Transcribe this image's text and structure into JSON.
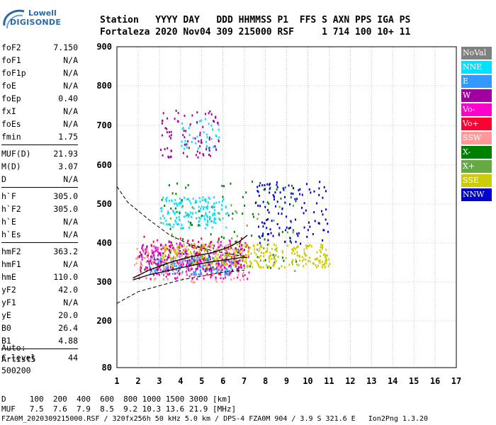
{
  "logo": {
    "line1": "Lowell",
    "line2": "DIGISONDE"
  },
  "header": {
    "line1": "Station   YYYY DAY   DDD HHMMSS P1  FFS S AXN PPS IGA PS",
    "line2": "Fortaleza 2020 Nov04 309 215000 RSF     1 714 100 10+ 11"
  },
  "params": {
    "group1": [
      {
        "label": "foF2",
        "value": "7.150"
      },
      {
        "label": "foF1",
        "value": "N/A"
      },
      {
        "label": "foF1p",
        "value": "N/A"
      },
      {
        "label": "foE",
        "value": "N/A"
      },
      {
        "label": "foEp",
        "value": "0.40"
      },
      {
        "label": "fxI",
        "value": "N/A"
      },
      {
        "label": "foEs",
        "value": "N/A"
      },
      {
        "label": "fmin",
        "value": "1.75"
      }
    ],
    "group2": [
      {
        "label": "MUF(D)",
        "value": "21.93"
      },
      {
        "label": "M(D)",
        "value": "3.07"
      },
      {
        "label": "D",
        "value": "N/A"
      }
    ],
    "group3": [
      {
        "label": "h`F",
        "value": "305.0"
      },
      {
        "label": "h`F2",
        "value": "305.0"
      },
      {
        "label": "h`E",
        "value": "N/A"
      },
      {
        "label": "h`Es",
        "value": "N/A"
      }
    ],
    "group4": [
      {
        "label": "hmF2",
        "value": "363.2"
      },
      {
        "label": "hmF1",
        "value": "N/A"
      },
      {
        "label": "hmE",
        "value": "110.0"
      },
      {
        "label": "yF2",
        "value": "42.0"
      },
      {
        "label": "yF1",
        "value": "N/A"
      },
      {
        "label": "yE",
        "value": "20.0"
      },
      {
        "label": "B0",
        "value": "26.4"
      },
      {
        "label": "B1",
        "value": "4.88"
      }
    ],
    "group5": [
      {
        "label": "C-level",
        "value": "44"
      }
    ]
  },
  "auto": {
    "line1": "Auto:",
    "line2": "Artist5",
    "line3": "500200"
  },
  "legend": [
    {
      "label": "NoVal",
      "color": "#808080"
    },
    {
      "label": "NNE",
      "color": "#00e0ff"
    },
    {
      "label": "E",
      "color": "#3399ff"
    },
    {
      "label": "W",
      "color": "#a000a0"
    },
    {
      "label": "Vo-",
      "color": "#ff00cc"
    },
    {
      "label": "Vo+",
      "color": "#ff0033"
    },
    {
      "label": "SSW",
      "color": "#ff9999"
    },
    {
      "label": "X-",
      "color": "#008000"
    },
    {
      "label": "X+",
      "color": "#66aa44"
    },
    {
      "label": "SSE",
      "color": "#cccc00"
    },
    {
      "label": "NNW",
      "color": "#0000cc"
    }
  ],
  "bottom": {
    "line1": "D     100  200  400  600  800 1000 1500 3000 [km]",
    "line2": "MUF   7.5  7.6  7.9  8.5  9.2 10.3 13.6 21.9 [MHz]"
  },
  "footer": "FZA0M_2020309215000.RSF / 320fx256h 50 kHz 5.0 km / DPS-4 FZA0M 904 / 3.9 S 321.6 E   Ion2Png 1.3.20",
  "chart_data": {
    "type": "scatter",
    "title": "",
    "xlabel": "",
    "ylabel": "",
    "xlim": [
      1,
      17
    ],
    "ylim": [
      80,
      900
    ],
    "y_scale": "nonlinear",
    "grid": true,
    "legend_position": "right",
    "xticks": [
      "1",
      "2",
      "3",
      "4",
      "5",
      "6",
      "7",
      "8",
      "9",
      "10",
      "11",
      "12",
      "13",
      "14",
      "15",
      "16",
      "17"
    ],
    "yticks": [
      "80",
      "200",
      "300",
      "400",
      "500",
      "600",
      "700",
      "800",
      "900"
    ],
    "clusters": [
      {
        "name": "NNE",
        "x_range": [
          3.0,
          6.2
        ],
        "y_range": [
          440,
          520
        ],
        "count": 160
      },
      {
        "name": "NNE",
        "x_range": [
          4.0,
          5.8
        ],
        "y_range": [
          640,
          720
        ],
        "count": 40
      },
      {
        "name": "E",
        "x_range": [
          2.5,
          6.5
        ],
        "y_range": [
          320,
          370
        ],
        "count": 200
      },
      {
        "name": "W",
        "x_range": [
          2.0,
          7.0
        ],
        "y_range": [
          330,
          400
        ],
        "count": 200
      },
      {
        "name": "W",
        "x_range": [
          3.0,
          5.8
        ],
        "y_range": [
          620,
          740
        ],
        "count": 80
      },
      {
        "name": "Vo-",
        "x_range": [
          2.0,
          7.2
        ],
        "y_range": [
          310,
          410
        ],
        "count": 180
      },
      {
        "name": "Vo+",
        "x_range": [
          2.0,
          7.2
        ],
        "y_range": [
          320,
          420
        ],
        "count": 60
      },
      {
        "name": "SSW",
        "x_range": [
          1.8,
          7.0
        ],
        "y_range": [
          300,
          400
        ],
        "count": 140
      },
      {
        "name": "X-",
        "x_range": [
          3.0,
          9.5
        ],
        "y_range": [
          330,
          560
        ],
        "count": 90
      },
      {
        "name": "X+",
        "x_range": [
          3.0,
          9.5
        ],
        "y_range": [
          330,
          500
        ],
        "count": 50
      },
      {
        "name": "SSE",
        "x_range": [
          3.0,
          11.0
        ],
        "y_range": [
          340,
          400
        ],
        "count": 300
      },
      {
        "name": "NNW",
        "x_range": [
          7.5,
          11.0
        ],
        "y_range": [
          400,
          560
        ],
        "count": 120
      }
    ],
    "profile_curve": {
      "freq": [
        1.75,
        2.5,
        3.5,
        4.5,
        5.5,
        6.3,
        6.8,
        7.15
      ],
      "height": [
        305,
        318,
        330,
        342,
        352,
        358,
        362,
        363
      ]
    },
    "virtual_height_curve": {
      "freq": [
        1.75,
        2.5,
        3.5,
        4.5,
        5.5,
        6.3,
        6.8,
        7.15
      ],
      "height": [
        310,
        330,
        350,
        365,
        375,
        390,
        405,
        420
      ]
    },
    "muf_dashed_curve": {
      "freq": [
        1.0,
        1.5,
        2.5,
        3.5,
        4.5,
        5.5,
        6.5,
        7.1
      ],
      "height": [
        545,
        505,
        460,
        420,
        395,
        380,
        370,
        365
      ]
    },
    "lower_dashed_curve": {
      "freq": [
        1.0,
        1.5,
        2.0,
        3.0,
        4.0,
        5.0,
        6.0,
        7.0
      ],
      "height": [
        245,
        260,
        275,
        290,
        305,
        315,
        325,
        330
      ]
    }
  }
}
